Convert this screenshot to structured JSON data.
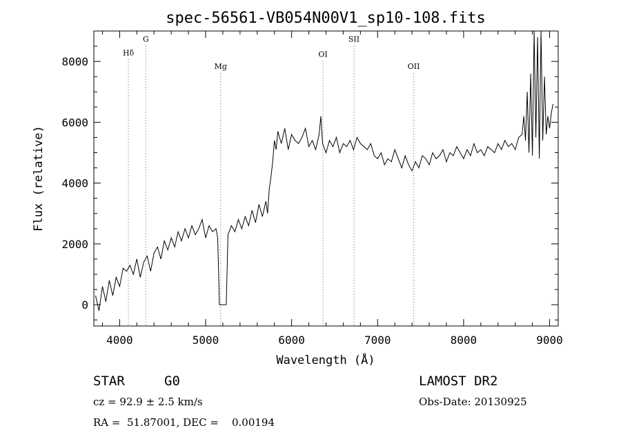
{
  "chart_data": {
    "type": "line",
    "title": "spec-56561-VB054N00V1_sp10-108.fits",
    "xlabel": "Wavelength (Å)",
    "ylabel": "Flux (relative)",
    "xlim": [
      3700,
      9100
    ],
    "ylim": [
      -700,
      9000
    ],
    "x_ticks": [
      4000,
      5000,
      6000,
      7000,
      8000,
      9000
    ],
    "y_ticks": [
      0,
      2000,
      4000,
      6000,
      8000
    ],
    "grid": false,
    "legend": "none",
    "line_color": "#000000",
    "marker_line_color": "#555555",
    "lines": [
      {
        "label": "Hδ",
        "wavelength": 4102,
        "y": 8200
      },
      {
        "label": "G",
        "wavelength": 4305,
        "y": 8650
      },
      {
        "label": "Mg",
        "wavelength": 5175,
        "y": 7750
      },
      {
        "label": "OI",
        "wavelength": 6364,
        "y": 8150
      },
      {
        "label": "SII",
        "wavelength": 6725,
        "y": 8650
      },
      {
        "label": "OII",
        "wavelength": 7420,
        "y": 7750
      }
    ],
    "series": [
      {
        "x": [
          3720,
          3760,
          3800,
          3840,
          3880,
          3920,
          3960,
          4000,
          4040,
          4080,
          4120,
          4160,
          4200,
          4240,
          4280,
          4320,
          4360,
          4400,
          4440,
          4480,
          4520,
          4560,
          4600,
          4640,
          4680,
          4720,
          4760,
          4800,
          4840,
          4880,
          4920,
          4960,
          5000,
          5040,
          5080,
          5120,
          5140,
          5160,
          5200,
          5240,
          5260,
          5300,
          5340,
          5380,
          5420,
          5460,
          5500,
          5540,
          5580,
          5620,
          5660,
          5700,
          5720,
          5740,
          5760,
          5780,
          5800,
          5820,
          5840,
          5880,
          5920,
          5960,
          6000,
          6040,
          6080,
          6120,
          6160,
          6200,
          6240,
          6280,
          6320,
          6340,
          6360,
          6400,
          6440,
          6480,
          6520,
          6560,
          6600,
          6640,
          6680,
          6720,
          6760,
          6800,
          6840,
          6880,
          6920,
          6960,
          7000,
          7040,
          7080,
          7120,
          7160,
          7200,
          7240,
          7280,
          7320,
          7360,
          7400,
          7440,
          7480,
          7520,
          7560,
          7600,
          7640,
          7680,
          7720,
          7760,
          7800,
          7840,
          7880,
          7920,
          7960,
          8000,
          8040,
          8080,
          8120,
          8160,
          8200,
          8240,
          8280,
          8320,
          8360,
          8400,
          8440,
          8480,
          8520,
          8560,
          8600,
          8640,
          8680,
          8700,
          8720,
          8740,
          8760,
          8780,
          8800,
          8820,
          8840,
          8860,
          8880,
          8900,
          8920,
          8940,
          8960,
          8980,
          9000,
          9020,
          9040
        ],
        "y": [
          300,
          -200,
          600,
          100,
          800,
          300,
          900,
          600,
          1200,
          1100,
          1300,
          1000,
          1500,
          900,
          1400,
          1600,
          1100,
          1700,
          1900,
          1500,
          2100,
          1800,
          2200,
          1900,
          2400,
          2100,
          2500,
          2200,
          2600,
          2300,
          2500,
          2800,
          2200,
          2600,
          2400,
          2500,
          2200,
          0,
          0,
          0,
          2300,
          2600,
          2400,
          2800,
          2500,
          2900,
          2600,
          3100,
          2700,
          3300,
          2900,
          3400,
          3000,
          3800,
          4200,
          4700,
          5400,
          5100,
          5700,
          5300,
          5800,
          5100,
          5600,
          5400,
          5300,
          5500,
          5800,
          5200,
          5400,
          5100,
          5600,
          6200,
          5300,
          5000,
          5400,
          5200,
          5500,
          5000,
          5300,
          5200,
          5400,
          5100,
          5500,
          5300,
          5200,
          5100,
          5300,
          4900,
          4800,
          5000,
          4600,
          4800,
          4700,
          5100,
          4800,
          4500,
          4900,
          4600,
          4400,
          4700,
          4500,
          4900,
          4800,
          4600,
          5000,
          4800,
          4900,
          5100,
          4700,
          5000,
          4900,
          5200,
          5000,
          4800,
          5100,
          4900,
          5300,
          5000,
          5100,
          4900,
          5200,
          5100,
          5000,
          5300,
          5100,
          5400,
          5200,
          5300,
          5100,
          5500,
          5600,
          6200,
          5400,
          7000,
          5000,
          7600,
          4900,
          9000,
          5500,
          8800,
          4800,
          9000,
          5400,
          7500,
          5600,
          6200,
          5800,
          6300,
          6600
        ]
      }
    ]
  },
  "info": {
    "obj_class": "STAR",
    "subclass": "G0",
    "survey": "LAMOST DR2",
    "cz_text": "cz = 92.9 ± 2.5 km/s",
    "obs_date": "Obs-Date: 20130925",
    "coords": "RA =  51.87001, DEC =    0.00194"
  }
}
